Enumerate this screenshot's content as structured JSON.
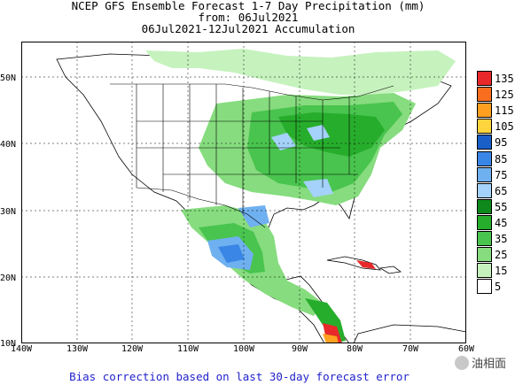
{
  "title": {
    "line1": "NCEP GFS Ensemble Forecast 1-7 Day Precipitation (mm)",
    "line2": "from: 06Jul2021",
    "line3": "06Jul2021-12Jul2021 Accumulation"
  },
  "map": {
    "lat_labels": [
      "50N",
      "40N",
      "30N",
      "20N",
      "10N"
    ],
    "lon_labels": [
      "140W",
      "130W",
      "120W",
      "110W",
      "100W",
      "90W",
      "80W",
      "70W",
      "60W"
    ],
    "extent": {
      "lon": [
        -140,
        -60
      ],
      "lat": [
        10,
        55
      ]
    }
  },
  "legend": {
    "levels": [
      "135",
      "125",
      "115",
      "105",
      "95",
      "85",
      "75",
      "65",
      "55",
      "45",
      "35",
      "25",
      "15",
      "5"
    ],
    "colors": [
      "#e8282a",
      "#f86e1e",
      "#ffa020",
      "#ffd43c",
      "#1a5fc8",
      "#3a86e6",
      "#6fb0f0",
      "#a4d2fa",
      "#0e8a1c",
      "#27ad2c",
      "#49c44e",
      "#86dc7e",
      "#c6f2be",
      "#ffffff"
    ]
  },
  "footer": "Bias correction based on last 30-day forecast error",
  "watermark": "油相面"
}
